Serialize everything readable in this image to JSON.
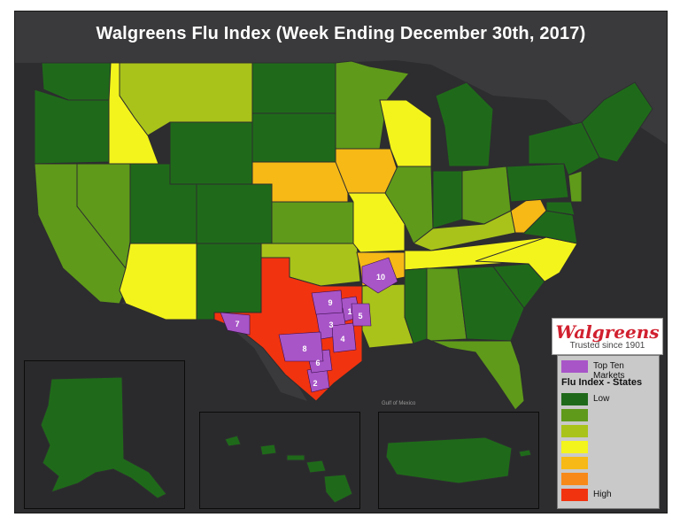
{
  "title": "Walgreens Flu Index (Week Ending December 30th, 2017)",
  "brand": {
    "name": "Walgreens",
    "tagline": "Trusted since 1901"
  },
  "legend": {
    "top_ten_label": "Top Ten Markets",
    "header": "Flu Index - States",
    "low_label": "Low",
    "high_label": "High",
    "market_color": "#a855c8",
    "levels": [
      "#1f6a1a",
      "#5f9a1a",
      "#a9c31a",
      "#f3f41c",
      "#f6b915",
      "#f7891a",
      "#f2330f"
    ]
  },
  "map_labels": {
    "gulf": "Gulf of Mexico"
  },
  "markets": [
    "1",
    "2",
    "3",
    "4",
    "5",
    "6",
    "7",
    "8",
    "9",
    "10"
  ]
}
